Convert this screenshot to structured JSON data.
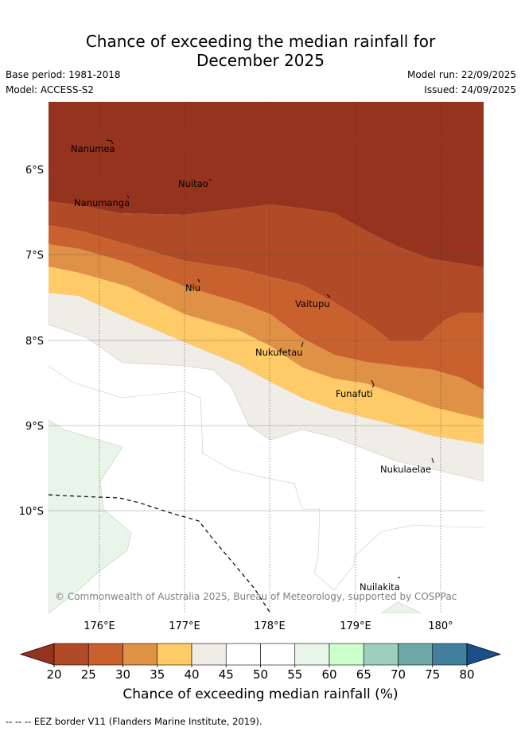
{
  "title_line1": "Chance of exceeding the median rainfall for",
  "title_line2": "December 2025",
  "base_period": "Base period: 1981-2018",
  "model": "Model: ACCESS-S2",
  "model_run": "Model run: 22/09/2025",
  "issued": "Issued: 24/09/2025",
  "copyright": "© Commonwealth of Australia 2025, Bureau of Meteorology, supported by COSPPac",
  "lat_labels": [
    "6°S",
    "7°S",
    "8°S",
    "9°S",
    "10°S"
  ],
  "lon_labels": [
    "176°E",
    "177°E",
    "178°E",
    "179°E",
    "180°"
  ],
  "places": [
    "Nanumea",
    "Nuitao",
    "Nanumanga",
    "Niu",
    "Vaitupu",
    "Nukufetau",
    "Funafuti",
    "Nukulaelae",
    "Nuilakita"
  ],
  "colorbar": {
    "ticks": [
      "20",
      "25",
      "30",
      "35",
      "40",
      "45",
      "50",
      "55",
      "60",
      "65",
      "70",
      "75",
      "80"
    ],
    "colors": [
      "#b04a27",
      "#c9612f",
      "#df9146",
      "#fecb68",
      "#f0ece6",
      "#ffffff",
      "#ffffff",
      "#e8f5e8",
      "#ccffcc",
      "#9ecfbc",
      "#6fa7a7",
      "#427f9c"
    ],
    "low_color": "#96331f",
    "high_color": "#1a4f8a",
    "label": "Chance of exceeding median rainfall (%)"
  },
  "footnote": "-- -- -- EEZ border V11 (Flanders Marine Institute, 2019)."
}
